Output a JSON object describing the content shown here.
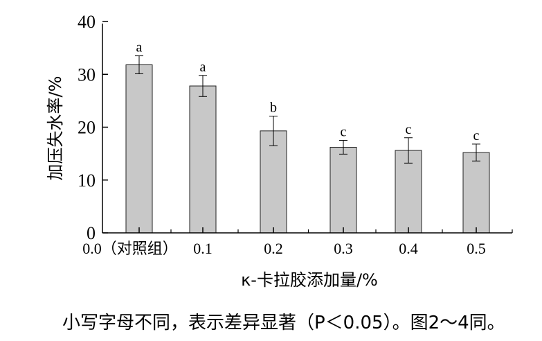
{
  "chart_data": {
    "type": "bar",
    "categories": [
      "0.0（对照组）",
      "0.1",
      "0.2",
      "0.3",
      "0.4",
      "0.5"
    ],
    "values": [
      31.8,
      27.8,
      19.3,
      16.2,
      15.6,
      15.2
    ],
    "errors": [
      1.7,
      2.0,
      2.8,
      1.3,
      2.4,
      1.6
    ],
    "significance": [
      "a",
      "a",
      "b",
      "c",
      "c",
      "c"
    ],
    "xlabel": "κ-卡拉胶添加量/%",
    "ylabel": "加压失水率/%",
    "ylim": [
      0,
      40
    ],
    "yticks": [
      "0",
      "10",
      "20",
      "30",
      "40"
    ],
    "grid": false,
    "bar_color": "#c8c8c8"
  },
  "note": "小写字母不同，表示差异显著（P＜0.05）。图2～4同。"
}
